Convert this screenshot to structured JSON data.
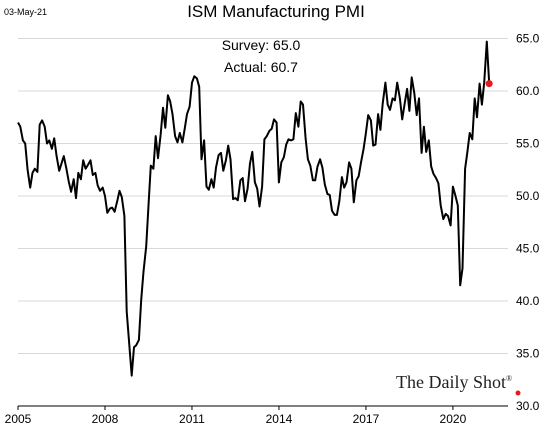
{
  "header": {
    "date": "03-May-21"
  },
  "annotation": {
    "survey": "Survey: 65.0",
    "actual": "Actual:  60.7"
  },
  "brand": {
    "name": "The Daily Shot",
    "mark": "®"
  },
  "chart_data": {
    "type": "line",
    "title": "ISM Manufacturing PMI",
    "xlabel": "",
    "ylabel": "",
    "xlim": [
      2005.0,
      2021.9
    ],
    "ylim": [
      30.0,
      66.0
    ],
    "y_axis_position": "right",
    "x_ticks": [
      "2005",
      "2008",
      "2011",
      "2014",
      "2017",
      "2020"
    ],
    "y_ticks": [
      "30.0",
      "35.0",
      "40.0",
      "45.0",
      "50.0",
      "55.0",
      "60.0",
      "65.0"
    ],
    "grid": true,
    "line_color": "#000000",
    "highlight_color": "#e8191b",
    "highlight_point": {
      "x": 2021.25,
      "y": 60.7
    },
    "series": [
      {
        "x": [
          2005.0,
          2005.08,
          2005.17,
          2005.25,
          2005.33,
          2005.42,
          2005.5,
          2005.58,
          2005.67,
          2005.75,
          2005.83,
          2005.92,
          2006.0,
          2006.08,
          2006.17,
          2006.25,
          2006.33,
          2006.42,
          2006.5,
          2006.58,
          2006.67,
          2006.75,
          2006.83,
          2006.92,
          2007.0,
          2007.08,
          2007.17,
          2007.25,
          2007.33,
          2007.42,
          2007.5,
          2007.58,
          2007.67,
          2007.75,
          2007.83,
          2007.92,
          2008.0,
          2008.08,
          2008.17,
          2008.25,
          2008.33,
          2008.42,
          2008.5,
          2008.58,
          2008.67,
          2008.75,
          2008.83,
          2008.92,
          2009.0,
          2009.08,
          2009.17,
          2009.25,
          2009.33,
          2009.42,
          2009.5,
          2009.58,
          2009.67,
          2009.75,
          2009.83,
          2009.92,
          2010.0,
          2010.08,
          2010.17,
          2010.25,
          2010.33,
          2010.42,
          2010.5,
          2010.58,
          2010.67,
          2010.75,
          2010.83,
          2010.92,
          2011.0,
          2011.08,
          2011.17,
          2011.25,
          2011.33,
          2011.42,
          2011.5,
          2011.58,
          2011.67,
          2011.75,
          2011.83,
          2011.92,
          2012.0,
          2012.08,
          2012.17,
          2012.25,
          2012.33,
          2012.42,
          2012.5,
          2012.58,
          2012.67,
          2012.75,
          2012.83,
          2012.92,
          2013.0,
          2013.08,
          2013.17,
          2013.25,
          2013.33,
          2013.42,
          2013.5,
          2013.58,
          2013.67,
          2013.75,
          2013.83,
          2013.92,
          2014.0,
          2014.08,
          2014.17,
          2014.25,
          2014.33,
          2014.42,
          2014.5,
          2014.58,
          2014.67,
          2014.75,
          2014.83,
          2014.92,
          2015.0,
          2015.08,
          2015.17,
          2015.25,
          2015.33,
          2015.42,
          2015.5,
          2015.58,
          2015.67,
          2015.75,
          2015.83,
          2015.92,
          2016.0,
          2016.08,
          2016.17,
          2016.25,
          2016.33,
          2016.42,
          2016.5,
          2016.58,
          2016.67,
          2016.75,
          2016.83,
          2016.92,
          2017.0,
          2017.08,
          2017.17,
          2017.25,
          2017.33,
          2017.42,
          2017.5,
          2017.58,
          2017.67,
          2017.75,
          2017.83,
          2017.92,
          2018.0,
          2018.08,
          2018.17,
          2018.25,
          2018.33,
          2018.42,
          2018.5,
          2018.58,
          2018.67,
          2018.75,
          2018.83,
          2018.92,
          2019.0,
          2019.08,
          2019.17,
          2019.25,
          2019.33,
          2019.42,
          2019.5,
          2019.58,
          2019.67,
          2019.75,
          2019.83,
          2019.92,
          2020.0,
          2020.08,
          2020.17,
          2020.25,
          2020.33,
          2020.42,
          2020.5,
          2020.58,
          2020.67,
          2020.75,
          2020.83,
          2020.92,
          2021.0,
          2021.08,
          2021.17,
          2021.25
        ],
        "y": [
          57.0,
          56.6,
          55.3,
          55.0,
          52.5,
          50.8,
          52.2,
          52.6,
          52.3,
          56.8,
          57.2,
          56.6,
          55.0,
          55.3,
          54.5,
          55.5,
          53.8,
          52.4,
          53.1,
          53.8,
          52.6,
          51.4,
          50.4,
          51.6,
          49.8,
          52.2,
          51.6,
          53.4,
          52.6,
          53.0,
          53.4,
          52.0,
          52.2,
          51.0,
          50.5,
          50.8,
          50.0,
          48.4,
          48.8,
          48.9,
          48.5,
          49.5,
          50.5,
          49.9,
          48.1,
          39.0,
          36.2,
          32.9,
          35.6,
          35.8,
          36.3,
          40.1,
          42.8,
          45.2,
          49.1,
          52.9,
          52.6,
          55.7,
          53.6,
          55.9,
          58.4,
          56.5,
          59.6,
          59.0,
          57.8,
          55.7,
          55.1,
          56.0,
          55.1,
          56.4,
          57.8,
          58.5,
          60.8,
          61.4,
          61.2,
          60.4,
          53.5,
          55.3,
          50.9,
          50.6,
          51.6,
          50.8,
          52.7,
          53.9,
          54.1,
          52.4,
          53.4,
          54.8,
          53.5,
          49.7,
          49.8,
          49.6,
          51.5,
          51.7,
          49.5,
          50.7,
          53.1,
          54.2,
          51.3,
          50.7,
          49.0,
          50.9,
          55.4,
          55.7,
          56.2,
          56.4,
          57.3,
          57.0,
          51.3,
          53.2,
          53.7,
          54.9,
          55.4,
          55.3,
          55.4,
          57.9,
          56.6,
          59.0,
          58.7,
          55.5,
          53.5,
          52.9,
          51.5,
          51.5,
          52.8,
          53.5,
          52.7,
          51.1,
          50.2,
          50.1,
          48.6,
          48.2,
          48.2,
          49.5,
          51.8,
          50.8,
          51.3,
          53.2,
          52.6,
          49.4,
          51.5,
          51.9,
          53.2,
          54.5,
          56.0,
          57.7,
          57.2,
          54.8,
          54.9,
          57.8,
          56.3,
          58.8,
          60.8,
          58.7,
          58.2,
          59.3,
          59.1,
          60.8,
          59.3,
          57.3,
          58.7,
          60.2,
          58.1,
          61.3,
          59.8,
          57.7,
          59.3,
          54.1,
          56.6,
          54.2,
          55.3,
          52.8,
          52.1,
          51.7,
          51.2,
          49.1,
          47.8,
          48.3,
          48.1,
          47.2,
          50.9,
          50.1,
          49.1,
          41.5,
          43.1,
          52.6,
          54.2,
          56.0,
          55.4,
          59.3,
          57.5,
          60.7,
          58.7,
          60.8,
          64.7,
          60.7
        ]
      }
    ]
  }
}
